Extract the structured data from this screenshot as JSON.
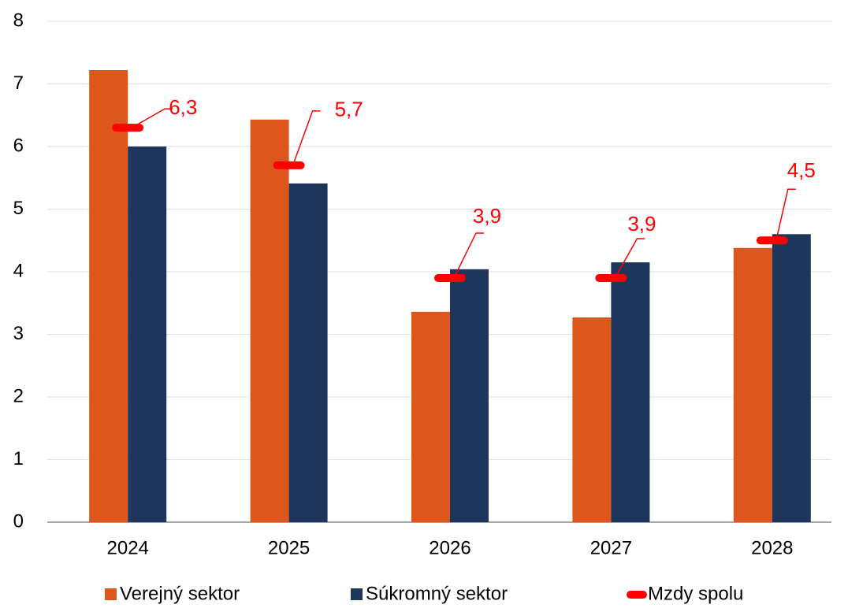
{
  "chart_data": {
    "type": "bar",
    "categories": [
      "2024",
      "2025",
      "2026",
      "2027",
      "2028"
    ],
    "series": [
      {
        "name": "Verejný sektor",
        "color": "#dd561c",
        "values": [
          7.22,
          6.43,
          3.36,
          3.27,
          4.38
        ]
      },
      {
        "name": "Súkromný sektor",
        "color": "#1f365c",
        "values": [
          6.0,
          5.41,
          4.04,
          4.15,
          4.6
        ]
      },
      {
        "name": "Mzdy spolu",
        "color": "#ff0000",
        "mark": "dash",
        "values": [
          6.3,
          5.7,
          3.9,
          3.9,
          4.5
        ],
        "value_labels": [
          "6,3",
          "5,7",
          "3,9",
          "3,9",
          "4,5"
        ]
      }
    ],
    "ylim": [
      0,
      8
    ],
    "yticks": [
      0,
      1,
      2,
      3,
      4,
      5,
      6,
      7,
      8
    ],
    "grid": true,
    "legend": "bottom"
  }
}
